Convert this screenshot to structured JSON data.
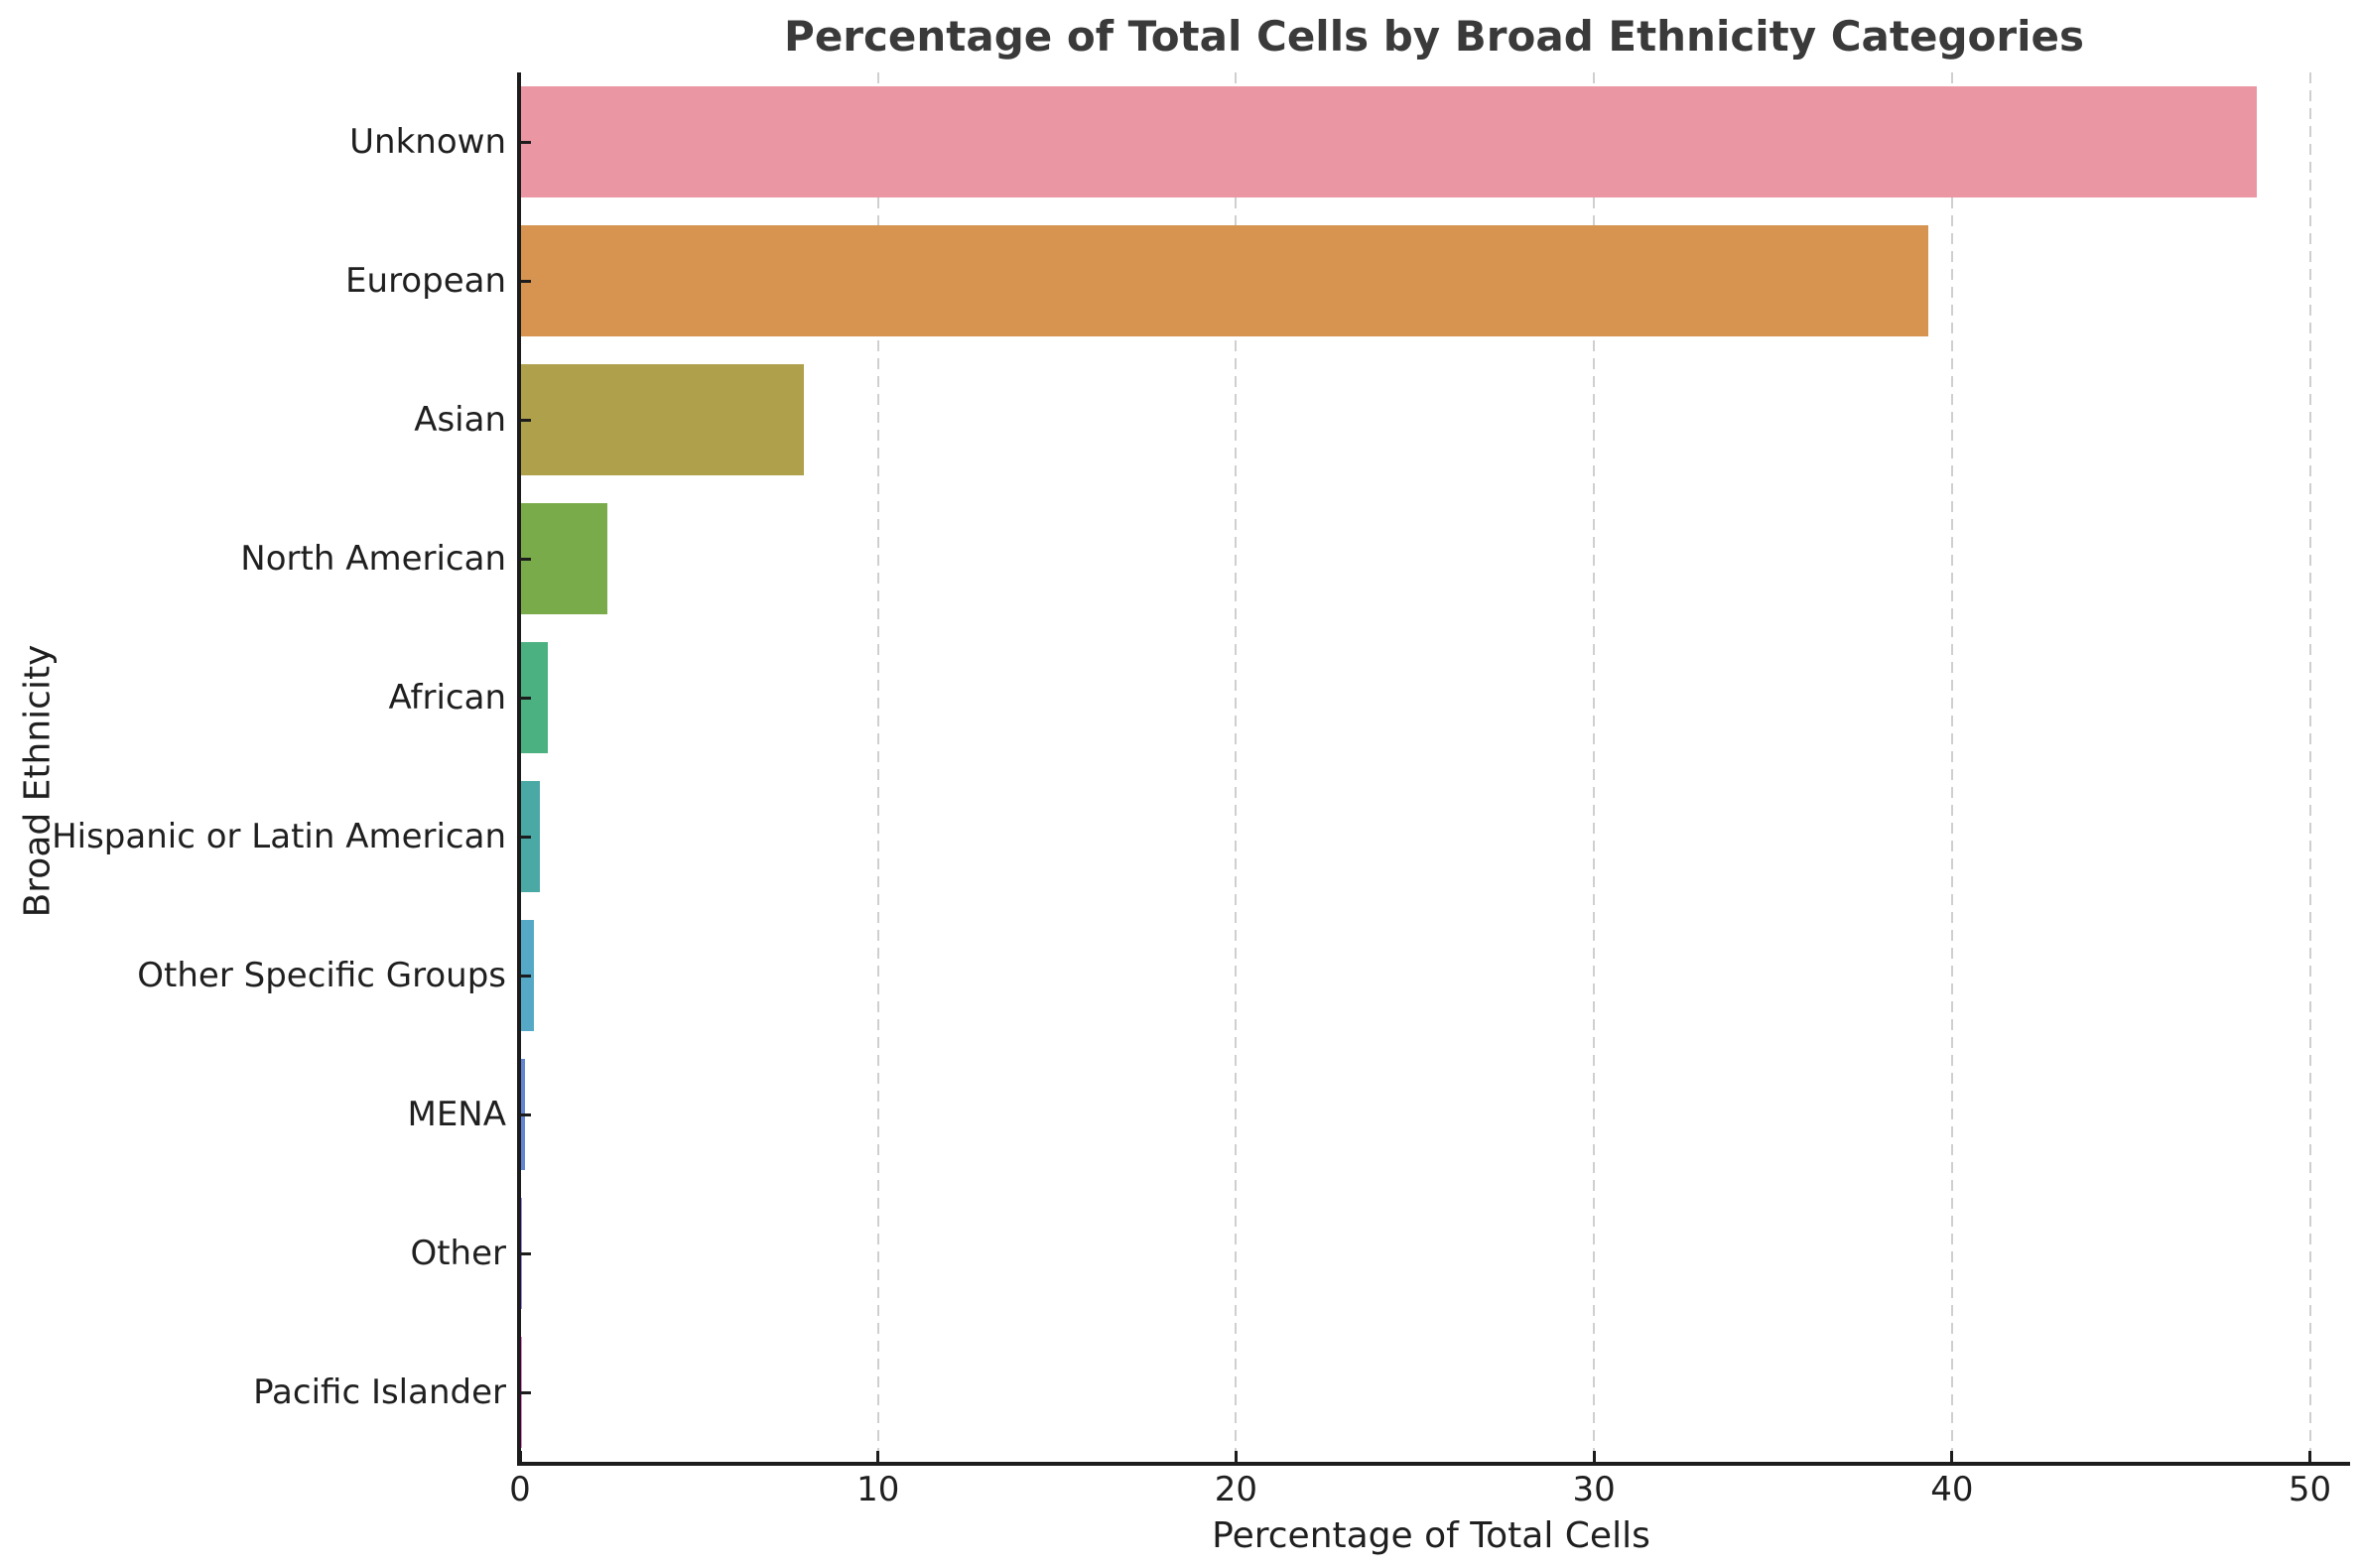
{
  "chart_data": {
    "type": "bar",
    "orientation": "horizontal",
    "title": "Percentage of Total Cells by Broad Ethnicity Categories",
    "xlabel": "Percentage of Total Cells",
    "ylabel": "Broad Ethnicity",
    "categories": [
      "Unknown",
      "European",
      "Asian",
      "North American",
      "African",
      "Hispanic or Latin American",
      "Other Specific Groups",
      "MENA",
      "Other",
      "Pacific Islander"
    ],
    "values": [
      48.5,
      39.3,
      7.9,
      2.4,
      0.75,
      0.53,
      0.35,
      0.11,
      0.02,
      0.01
    ],
    "bar_colors": [
      "#ea97a3",
      "#d69450",
      "#afa04b",
      "#7aab4b",
      "#4bb181",
      "#4aa9a4",
      "#55a9c6",
      "#6384d2",
      "#a58ced",
      "#ec7fd4"
    ],
    "xticks": [
      0,
      10,
      20,
      30,
      40,
      50
    ],
    "xlim": [
      0,
      50.9
    ],
    "grid": {
      "axis": "x",
      "style": "dashed",
      "color": "#cfcfcf"
    },
    "legend": "none",
    "background": "#ffffff"
  },
  "style": {
    "spine_color": "#1c1c1c",
    "text_color": "#1f1f1f",
    "title_color": "#3a3a3a"
  }
}
